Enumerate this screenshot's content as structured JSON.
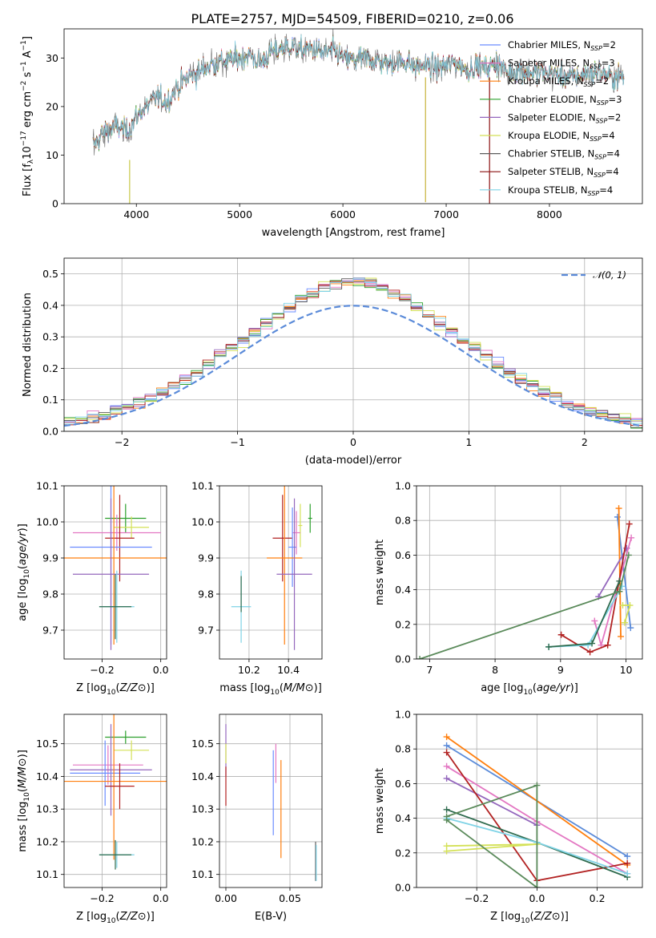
{
  "figure": {
    "title": "PLATE=2757, MJD=54509, FIBERID=0210, z=0.06"
  },
  "colors": {
    "series": [
      "#5d5d5d",
      "#d62728",
      "#ff7f0e",
      "#2ca02c",
      "#9467bd",
      "#bcbd22",
      "#7f7f7f",
      "#8c1010",
      "#17becf",
      "#6a8cff",
      "#e377c2"
    ]
  },
  "chart_data": [
    {
      "id": "spectrum",
      "type": "line",
      "title": "PLATE=2757, MJD=54509, FIBERID=0210, z=0.06",
      "xlabel": "wavelength [Angstrom, rest frame]",
      "ylabel": "Flux [fλ 10⁻¹⁷ erg cm⁻² s⁻¹ A⁻¹]",
      "xlim": [
        3300,
        8900
      ],
      "ylim": [
        0,
        36
      ],
      "xticks": [
        4000,
        5000,
        6000,
        7000,
        8000
      ],
      "yticks": [
        0,
        10,
        20,
        30
      ],
      "grid": false,
      "legend_position": "top-right",
      "anchors": [
        [
          3580,
          12
        ],
        [
          3700,
          15
        ],
        [
          3800,
          16
        ],
        [
          3900,
          15
        ],
        [
          3950,
          16
        ],
        [
          4000,
          18
        ],
        [
          4100,
          20
        ],
        [
          4200,
          22
        ],
        [
          4300,
          21
        ],
        [
          4400,
          24
        ],
        [
          4500,
          26
        ],
        [
          4600,
          27
        ],
        [
          4700,
          28.5
        ],
        [
          4800,
          29
        ],
        [
          4900,
          29.5
        ],
        [
          5000,
          30
        ],
        [
          5100,
          30.5
        ],
        [
          5200,
          29
        ],
        [
          5300,
          31
        ],
        [
          5400,
          32
        ],
        [
          5500,
          32.5
        ],
        [
          5600,
          31.5
        ],
        [
          5700,
          32
        ],
        [
          5800,
          31
        ],
        [
          5900,
          31.5
        ],
        [
          6000,
          30
        ],
        [
          6100,
          29.5
        ],
        [
          6200,
          30
        ],
        [
          6300,
          29.5
        ],
        [
          6400,
          29
        ],
        [
          6500,
          29
        ],
        [
          6600,
          29.5
        ],
        [
          6700,
          28
        ],
        [
          6800,
          28.5
        ],
        [
          6900,
          28
        ],
        [
          7000,
          28.5
        ],
        [
          7100,
          29
        ],
        [
          7200,
          27.5
        ],
        [
          7300,
          28.5
        ],
        [
          7400,
          28
        ],
        [
          7500,
          29
        ],
        [
          7600,
          27
        ],
        [
          7700,
          27.5
        ],
        [
          7800,
          27
        ],
        [
          7900,
          27
        ],
        [
          8000,
          27
        ],
        [
          8100,
          26.5
        ],
        [
          8200,
          26
        ],
        [
          8300,
          26.5
        ],
        [
          8400,
          27
        ],
        [
          8500,
          27
        ],
        [
          8600,
          26
        ],
        [
          8700,
          26
        ]
      ],
      "series": [
        {
          "name": "Chabrier MILES, N_SSP=2",
          "color": "#6a8cff"
        },
        {
          "name": "Salpeter MILES, N_SSP=3",
          "color": "#e377c2"
        },
        {
          "name": "Kroupa MILES, N_SSP=2",
          "color": "#ff7f0e"
        },
        {
          "name": "Chabrier ELODIE, N_SSP=3",
          "color": "#2ca02c"
        },
        {
          "name": "Salpeter ELODIE, N_SSP=2",
          "color": "#9467bd"
        },
        {
          "name": "Kroupa ELODIE, N_SSP=4",
          "color": "#d4e157"
        },
        {
          "name": "Chabrier STELIB, N_SSP=4",
          "color": "#5d5d5d"
        },
        {
          "name": "Salpeter STELIB, N_SSP=4",
          "color": "#8c1010"
        },
        {
          "name": "Kroupa STELIB, N_SSP=4",
          "color": "#7fd3e6"
        }
      ],
      "legend": [
        {
          "pre": "Chabrier MILES, N",
          "sub": "SSP",
          "post": "=2"
        },
        {
          "pre": "Salpeter MILES, N",
          "sub": "SSP",
          "post": "=3"
        },
        {
          "pre": "Kroupa MILES, N",
          "sub": "SSP",
          "post": "=2"
        },
        {
          "pre": "Chabrier ELODIE, N",
          "sub": "SSP",
          "post": "=3"
        },
        {
          "pre": "Salpeter ELODIE, N",
          "sub": "SSP",
          "post": "=2"
        },
        {
          "pre": "Kroupa ELODIE, N",
          "sub": "SSP",
          "post": "=4"
        },
        {
          "pre": "Chabrier STELIB, N",
          "sub": "SSP",
          "post": "=4"
        },
        {
          "pre": "Salpeter STELIB, N",
          "sub": "SSP",
          "post": "=4"
        },
        {
          "pre": "Kroupa STELIB, N",
          "sub": "SSP",
          "post": "=4"
        }
      ]
    },
    {
      "id": "residuals",
      "type": "histogram",
      "xlabel": "(data-model)/error",
      "ylabel": "Normed distribution",
      "xlim": [
        -2.5,
        2.5
      ],
      "ylim": [
        0,
        0.55
      ],
      "xticks": [
        -2,
        -1,
        0,
        1,
        2
      ],
      "yticks": [
        0.0,
        0.1,
        0.2,
        0.3,
        0.4,
        0.5
      ],
      "grid": true,
      "legend_position": "top-right",
      "legend": "𝒩(0, 1)",
      "bin_width": 0.1,
      "series_colors": [
        "#6a8cff",
        "#e377c2",
        "#ff7f0e",
        "#2ca02c",
        "#9467bd",
        "#d4e157",
        "#5d5d5d",
        "#b22222",
        "#7fd3e6"
      ],
      "gaussian": {
        "mean": 0,
        "sigma": 1,
        "color": "#5b8bd9"
      }
    },
    {
      "id": "age-vs-Z",
      "type": "errorbar",
      "xlabel": "Z [log10(Z/Z⊙)]",
      "ylabel": "age  [log10(age/yr)]",
      "xlim": [
        -0.33,
        0.02
      ],
      "ylim": [
        9.62,
        10.1
      ],
      "xticks": [
        -0.2,
        0.0
      ],
      "yticks": [
        9.7,
        9.8,
        9.9,
        10.0,
        10.1
      ],
      "grid": true,
      "points": [
        {
          "x": -0.12,
          "xerr": 0.07,
          "y": 10.01,
          "yerr": 0.04,
          "color": "#2ca02c"
        },
        {
          "x": -0.15,
          "xerr": 0.15,
          "y": 9.97,
          "yerr": 0.05,
          "color": "#e377c2"
        },
        {
          "x": -0.1,
          "xerr": 0.06,
          "y": 9.985,
          "yerr": 0.03,
          "color": "#d4e157"
        },
        {
          "x": -0.14,
          "xerr": 0.05,
          "y": 9.955,
          "yerr": 0.12,
          "color": "#b22222"
        },
        {
          "x": -0.17,
          "xerr": 0.14,
          "y": 9.93,
          "yerr": 0.27,
          "color": "#6a8cff"
        },
        {
          "x": -0.16,
          "xerr": 0.19,
          "y": 9.9,
          "yerr": 0.24,
          "color": "#ff7f0e"
        },
        {
          "x": -0.17,
          "xerr": 0.13,
          "y": 9.855,
          "yerr": 0.21,
          "color": "#9467bd"
        },
        {
          "x": -0.15,
          "xerr": 0.06,
          "y": 9.765,
          "yerr": 0.1,
          "color": "#7fd3e6"
        },
        {
          "x": -0.155,
          "xerr": 0.055,
          "y": 9.765,
          "yerr": 0.09,
          "color": "#2e6b4e"
        }
      ]
    },
    {
      "id": "age-vs-mass",
      "type": "errorbar",
      "xlabel": "mass [log10(M/M⊙)]",
      "ylabel": "",
      "xlim": [
        10.05,
        10.57
      ],
      "ylim": [
        9.62,
        10.1
      ],
      "xticks": [
        10.2,
        10.4
      ],
      "yticks": [
        9.7,
        9.8,
        9.9,
        10.0,
        10.1
      ],
      "grid": true,
      "points": [
        {
          "x": 10.51,
          "xerr": 0.01,
          "y": 10.01,
          "yerr": 0.04,
          "color": "#2ca02c"
        },
        {
          "x": 10.46,
          "xerr": 0.01,
          "y": 9.99,
          "yerr": 0.06,
          "color": "#d4e157"
        },
        {
          "x": 10.44,
          "xerr": 0.02,
          "y": 9.97,
          "yerr": 0.06,
          "color": "#e377c2"
        },
        {
          "x": 10.37,
          "xerr": 0.05,
          "y": 9.955,
          "yerr": 0.12,
          "color": "#b22222"
        },
        {
          "x": 10.42,
          "xerr": 0.02,
          "y": 9.93,
          "yerr": 0.11,
          "color": "#6a8cff"
        },
        {
          "x": 10.38,
          "xerr": 0.09,
          "y": 9.9,
          "yerr": 0.24,
          "color": "#ff7f0e"
        },
        {
          "x": 10.43,
          "xerr": 0.09,
          "y": 9.855,
          "yerr": 0.21,
          "color": "#9467bd"
        },
        {
          "x": 10.16,
          "xerr": 0.05,
          "y": 9.765,
          "yerr": 0.1,
          "color": "#7fd3e6"
        },
        {
          "x": 10.16,
          "xerr": 0.002,
          "y": 9.8,
          "yerr": 0.05,
          "color": "#2e6b4e"
        }
      ]
    },
    {
      "id": "mass-weight-vs-age",
      "type": "line",
      "xlabel": "age  [log10(age/yr)]",
      "ylabel": "mass weight",
      "xlim": [
        6.8,
        10.25
      ],
      "ylim": [
        0,
        1.0
      ],
      "xticks": [
        7,
        8,
        9,
        10
      ],
      "yticks": [
        0.0,
        0.2,
        0.4,
        0.6,
        0.8,
        1.0
      ],
      "grid": true,
      "series": [
        {
          "color": "#5b8bd9",
          "points": [
            [
              9.87,
              0.82
            ],
            [
              10.07,
              0.18
            ]
          ]
        },
        {
          "color": "#ff7f0e",
          "points": [
            [
              9.89,
              0.87
            ],
            [
              9.92,
              0.13
            ]
          ]
        },
        {
          "color": "#9467bd",
          "points": [
            [
              9.58,
              0.36
            ],
            [
              10.01,
              0.64
            ]
          ]
        },
        {
          "color": "#d4e157",
          "points": [
            [
              9.95,
              0.31
            ],
            [
              10.06,
              0.31
            ],
            [
              9.98,
              0.21
            ]
          ]
        },
        {
          "color": "#e377c2",
          "points": [
            [
              9.52,
              0.22
            ],
            [
              9.62,
              0.08
            ],
            [
              10.08,
              0.7
            ]
          ]
        },
        {
          "color": "#b22222",
          "points": [
            [
              9.01,
              0.14
            ],
            [
              9.45,
              0.04
            ],
            [
              9.72,
              0.08
            ],
            [
              10.05,
              0.78
            ]
          ]
        },
        {
          "color": "#7fd3e6",
          "points": [
            [
              8.82,
              0.07
            ],
            [
              9.42,
              0.08
            ],
            [
              9.94,
              0.42
            ]
          ]
        },
        {
          "color": "#2e6b4e",
          "points": [
            [
              8.82,
              0.07
            ],
            [
              9.48,
              0.09
            ],
            [
              9.9,
              0.45
            ]
          ]
        },
        {
          "color": "#5a8a5a",
          "points": [
            [
              6.85,
              0.0
            ],
            [
              9.9,
              0.39
            ],
            [
              10.04,
              0.6
            ]
          ]
        }
      ]
    },
    {
      "id": "mass-vs-Z",
      "type": "errorbar",
      "xlabel": "Z [log10(Z/Z⊙)]",
      "ylabel": "mass [log10(M/M⊙)]",
      "xlim": [
        -0.33,
        0.02
      ],
      "ylim": [
        10.06,
        10.59
      ],
      "xticks": [
        -0.2,
        0.0
      ],
      "yticks": [
        10.1,
        10.2,
        10.3,
        10.4,
        10.5
      ],
      "grid": true,
      "points": [
        {
          "x": -0.12,
          "xerr": 0.07,
          "y": 10.52,
          "yerr": 0.02,
          "color": "#2ca02c"
        },
        {
          "x": -0.1,
          "xerr": 0.06,
          "y": 10.48,
          "yerr": 0.03,
          "color": "#d4e157"
        },
        {
          "x": -0.18,
          "xerr": 0.12,
          "y": 10.435,
          "yerr": 0.06,
          "color": "#e377c2"
        },
        {
          "x": -0.17,
          "xerr": 0.14,
          "y": 10.42,
          "yerr": 0.14,
          "color": "#9467bd"
        },
        {
          "x": -0.19,
          "xerr": 0.12,
          "y": 10.41,
          "yerr": 0.1,
          "color": "#6a8cff"
        },
        {
          "x": -0.16,
          "xerr": 0.18,
          "y": 10.385,
          "yerr": 0.24,
          "color": "#ff7f0e"
        },
        {
          "x": -0.14,
          "xerr": 0.05,
          "y": 10.37,
          "yerr": 0.07,
          "color": "#b22222"
        },
        {
          "x": -0.15,
          "xerr": 0.06,
          "y": 10.16,
          "yerr": 0.04,
          "color": "#7fd3e6"
        },
        {
          "x": -0.155,
          "xerr": 0.055,
          "y": 10.16,
          "yerr": 0.045,
          "color": "#2e6b4e"
        }
      ]
    },
    {
      "id": "mass-vs-EBV",
      "type": "errorbar",
      "xlabel": "E(B-V)",
      "ylabel": "",
      "xlim": [
        -0.005,
        0.075
      ],
      "ylim": [
        10.06,
        10.59
      ],
      "xticks": [
        0.0,
        0.05
      ],
      "yticks": [
        10.1,
        10.2,
        10.3,
        10.4,
        10.5
      ],
      "grid": true,
      "points": [
        {
          "x": 0.0,
          "xerr": 0.0,
          "y": 10.48,
          "yerr": 0.08,
          "color": "#9467bd"
        },
        {
          "x": 0.0,
          "xerr": 0.0,
          "y": 10.37,
          "yerr": 0.06,
          "color": "#b22222"
        },
        {
          "x": 0.0,
          "xerr": 0.0,
          "y": 10.47,
          "yerr": 0.03,
          "color": "#d4e157"
        },
        {
          "x": 0.039,
          "xerr": 0.0,
          "y": 10.44,
          "yerr": 0.06,
          "color": "#e377c2"
        },
        {
          "x": 0.037,
          "xerr": 0.0,
          "y": 10.35,
          "yerr": 0.13,
          "color": "#6a8cff"
        },
        {
          "x": 0.043,
          "xerr": 0.0,
          "y": 10.3,
          "yerr": 0.15,
          "color": "#ff7f0e"
        },
        {
          "x": 0.07,
          "xerr": 0.0,
          "y": 10.14,
          "yerr": 0.06,
          "color": "#5d5d5d"
        },
        {
          "x": 0.0705,
          "xerr": 0.0,
          "y": 10.135,
          "yerr": 0.055,
          "color": "#7fd3e6"
        }
      ]
    },
    {
      "id": "mass-weight-vs-Z",
      "type": "line",
      "xlabel": "Z [log10(Z/Z⊙)]",
      "ylabel": "mass weight",
      "xlim": [
        -0.4,
        0.35
      ],
      "ylim": [
        0,
        1.0
      ],
      "xticks": [
        -0.2,
        0.0,
        0.2
      ],
      "yticks": [
        0.0,
        0.2,
        0.4,
        0.6,
        0.8,
        1.0
      ],
      "grid": true,
      "series": [
        {
          "color": "#5b8bd9",
          "points": [
            [
              -0.3,
              0.82
            ],
            [
              0.3,
              0.18
            ]
          ]
        },
        {
          "color": "#ff7f0e",
          "points": [
            [
              -0.3,
              0.87
            ],
            [
              0.3,
              0.13
            ]
          ]
        },
        {
          "color": "#e377c2",
          "points": [
            [
              -0.3,
              0.7
            ],
            [
              0.0,
              0.38
            ],
            [
              0.3,
              0.08
            ]
          ]
        },
        {
          "color": "#9467bd",
          "points": [
            [
              -0.3,
              0.63
            ],
            [
              0.0,
              0.36
            ]
          ]
        },
        {
          "color": "#b22222",
          "points": [
            [
              -0.3,
              0.78
            ],
            [
              0.0,
              0.04
            ],
            [
              0.3,
              0.14
            ]
          ]
        },
        {
          "color": "#2e6b4e",
          "points": [
            [
              -0.3,
              0.45
            ],
            [
              0.0,
              0.26
            ],
            [
              0.3,
              0.06
            ]
          ]
        },
        {
          "color": "#7fd3e6",
          "points": [
            [
              -0.3,
              0.4
            ],
            [
              0.0,
              0.26
            ],
            [
              0.3,
              0.08
            ]
          ]
        },
        {
          "color": "#d4e157",
          "points": [
            [
              -0.3,
              0.24
            ],
            [
              0.0,
              0.25
            ],
            [
              -0.3,
              0.21
            ]
          ]
        },
        {
          "color": "#5a8a5a",
          "points": [
            [
              -0.3,
              0.41
            ],
            [
              0.0,
              0.59
            ],
            [
              0.0,
              0.0
            ],
            [
              -0.3,
              0.39
            ]
          ]
        }
      ]
    }
  ]
}
